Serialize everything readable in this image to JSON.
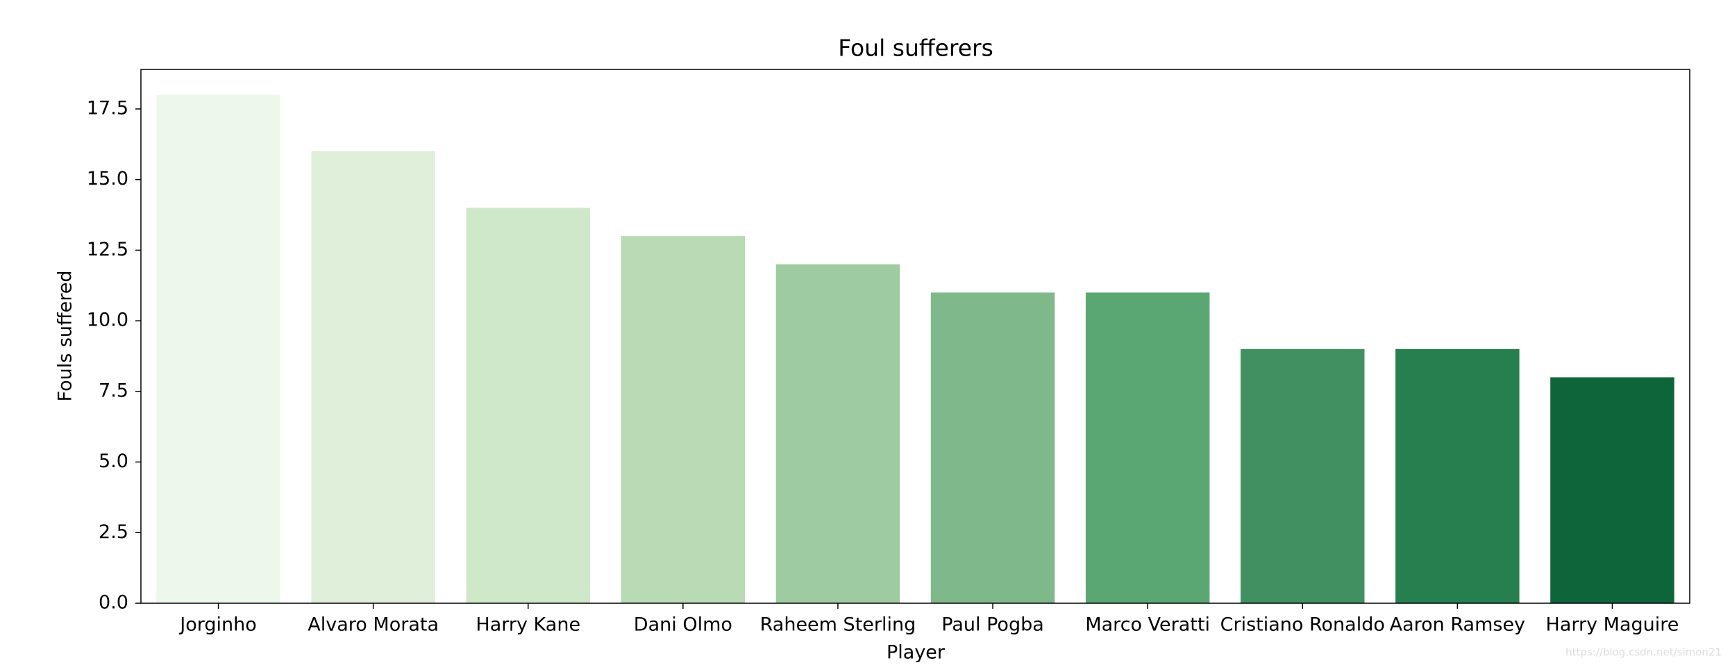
{
  "chart_data": {
    "type": "bar",
    "title": "Foul sufferers",
    "x_label": "Player",
    "y_label": "Fouls suffered",
    "categories": [
      "Jorginho",
      "Alvaro Morata",
      "Harry Kane",
      "Dani Olmo",
      "Raheem Sterling",
      "Paul Pogba",
      "Marco Veratti",
      "Cristiano Ronaldo",
      "Aaron Ramsey",
      "Harry Maguire"
    ],
    "values": [
      18,
      16,
      14,
      13,
      12,
      11,
      11,
      9,
      9,
      8
    ],
    "colors": [
      "#edf7ea",
      "#dfefda",
      "#d0e8ca",
      "#b8dab5",
      "#9ecb9f",
      "#7fb98a",
      "#5ba772",
      "#419062",
      "#257f4e",
      "#0e6539"
    ],
    "ylim": [
      0,
      18.9
    ],
    "yticks": [
      {
        "value": 0,
        "label": "0.0"
      },
      2.5,
      {
        "value": 5,
        "label": "5.0"
      },
      7.5,
      {
        "value": 10,
        "label": "10.0"
      },
      12.5,
      {
        "value": 15,
        "label": "15.0"
      },
      17.5
    ],
    "grid": false,
    "watermark": "https://blog.csdn.net/simon21"
  }
}
